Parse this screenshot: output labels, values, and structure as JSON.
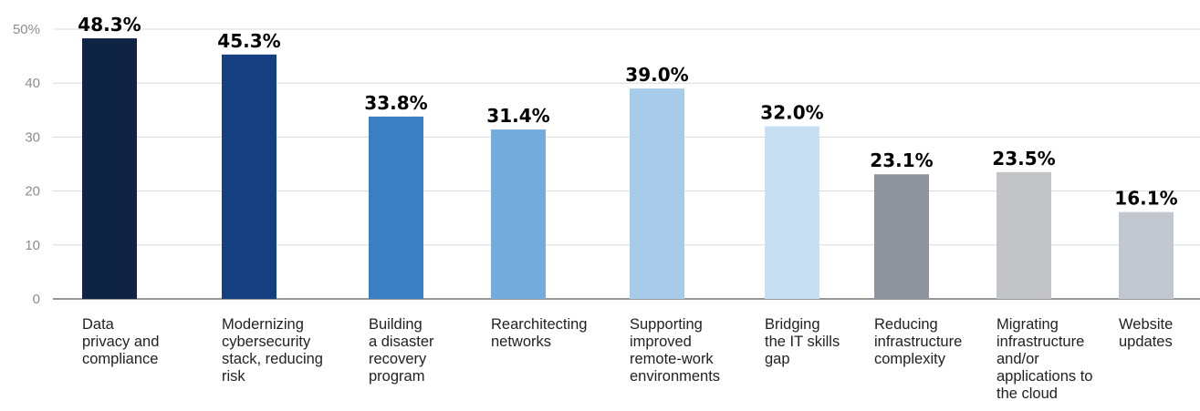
{
  "chart_data": {
    "type": "bar",
    "categories": [
      "Data\nprivacy and\ncompliance",
      "Modernizing\ncybersecurity\nstack, reducing\nrisk",
      "Building\na disaster\nrecovery\nprogram",
      "Rearchitecting\nnetworks",
      "Supporting\nimproved\nremote-work\nenvironments",
      "Bridging\nthe IT skills\ngap",
      "Reducing\ninfrastructure\ncomplexity",
      "Migrating\ninfrastructure\nand/or\napplications to\nthe cloud",
      "Website\nupdates"
    ],
    "values": [
      48.3,
      45.3,
      33.8,
      31.4,
      39.0,
      32.0,
      23.1,
      23.5,
      16.1
    ],
    "value_labels": [
      "48.3%",
      "45.3%",
      "33.8%",
      "31.4%",
      "39.0%",
      "32.0%",
      "23.1%",
      "23.5%",
      "16.1%"
    ],
    "bar_colors": [
      "#0f2344",
      "#163f82",
      "#3a7ec4",
      "#74abdd",
      "#a8cbea",
      "#c7def3",
      "#8e949e",
      "#c2c4c8",
      "#c3c7cf"
    ],
    "yticks": [
      0,
      10,
      20,
      30,
      40,
      50
    ],
    "ytick_labels": [
      "0",
      "10",
      "20",
      "30",
      "40",
      "50%"
    ],
    "ylim": [
      0,
      50
    ],
    "grid": true
  }
}
